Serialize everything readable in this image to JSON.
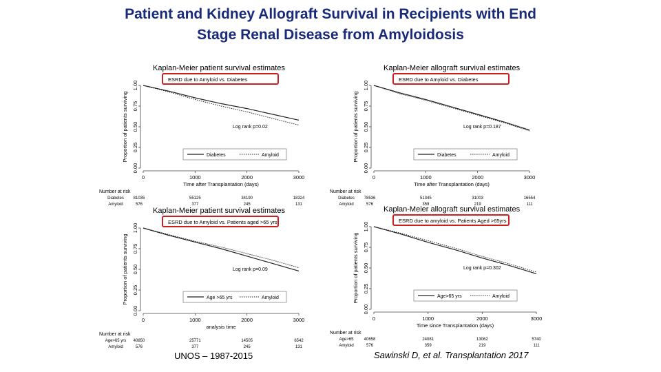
{
  "slide": {
    "title_line1": "Patient and Kidney Allograft Survival in Recipients with End",
    "title_line2": "Stage Renal Disease from Amyloidosis"
  },
  "footer": {
    "source": "UNOS – 1987-2015",
    "citation": "Sawinski D, et al. Transplantation 2017"
  },
  "colors": {
    "title": "#1a2a7a",
    "highlight_box": "#cc1f1f",
    "curve": "#222222"
  },
  "chart_data": [
    {
      "type": "line",
      "title": "Kaplan-Meier patient survival estimates",
      "subtitle": "ESRD due to Amyloid vs. Diabetes",
      "ylabel": "Proportion of patients surviving",
      "xlabel": "Time after Transplantation (days)",
      "xlim": [
        0,
        3000
      ],
      "ylim": [
        0,
        1
      ],
      "xticks": [
        "0",
        "1000",
        "2000",
        "3000"
      ],
      "yticks": [
        "0.00",
        "0.25",
        "0.50",
        "0.75",
        "1.00"
      ],
      "annotation": "Log rank p=0.02",
      "legend": [
        "Diabetes",
        "Amyloid"
      ],
      "series": [
        {
          "name": "Diabetes",
          "style": "solid",
          "x": [
            0,
            500,
            1000,
            1500,
            2000,
            2500,
            3000
          ],
          "y": [
            1.0,
            0.93,
            0.85,
            0.78,
            0.72,
            0.65,
            0.58
          ]
        },
        {
          "name": "Amyloid",
          "style": "dotted",
          "x": [
            0,
            500,
            1000,
            1500,
            2000,
            2500,
            3000
          ],
          "y": [
            1.0,
            0.92,
            0.83,
            0.75,
            0.68,
            0.6,
            0.52
          ]
        }
      ],
      "risk_table": {
        "header": "Number at risk",
        "rows": [
          {
            "label": "Diabetes",
            "values": [
              "81035",
              "55125",
              "34190",
              "18324"
            ]
          },
          {
            "label": "Amyloid",
            "values": [
              "576",
              "377",
              "245",
              "131"
            ]
          }
        ]
      }
    },
    {
      "type": "line",
      "title": "Kaplan-Meier allograft survival estimates",
      "subtitle": "ESRD due to Amyloid vs. Diabetes",
      "ylabel": "Proportion of patients surviving",
      "xlabel": "Time after Transplantation (days)",
      "xlim": [
        0,
        3000
      ],
      "ylim": [
        0,
        1
      ],
      "xticks": [
        "0",
        "1000",
        "2000",
        "3000"
      ],
      "yticks": [
        "0.00",
        "0.25",
        "0.50",
        "0.75",
        "1.00"
      ],
      "annotation": "Log rank p=0.187",
      "legend": [
        "Diabetes",
        "Amyloid"
      ],
      "series": [
        {
          "name": "Diabetes",
          "style": "solid",
          "x": [
            0,
            500,
            1000,
            1500,
            2000,
            2500,
            3000
          ],
          "y": [
            1.0,
            0.91,
            0.83,
            0.74,
            0.65,
            0.56,
            0.46
          ]
        },
        {
          "name": "Amyloid",
          "style": "dotted",
          "x": [
            0,
            500,
            1000,
            1500,
            2000,
            2500,
            3000
          ],
          "y": [
            1.0,
            0.9,
            0.82,
            0.73,
            0.64,
            0.55,
            0.45
          ]
        }
      ],
      "risk_table": {
        "header": "Number at risk",
        "rows": [
          {
            "label": "Diabetes",
            "values": [
              "78536",
              "51345",
              "31003",
              "16554"
            ]
          },
          {
            "label": "Amyloid",
            "values": [
              "576",
              "359",
              "219",
              "111"
            ]
          }
        ]
      }
    },
    {
      "type": "line",
      "title": "Kaplan-Meier patient survival estimates",
      "subtitle": "ESRD due to Amyloid vs. Patients aged >65 yrs",
      "ylabel": "Proportion of patients surviving",
      "xlabel": "analysis time",
      "xlim": [
        0,
        3000
      ],
      "ylim": [
        0,
        1
      ],
      "xticks": [
        "0",
        "1000",
        "2000",
        "3000"
      ],
      "yticks": [
        "0.00",
        "0.25",
        "0.50",
        "0.75",
        "1.00"
      ],
      "annotation": "Log rank p=0.09",
      "legend": [
        "Age >65 yrs",
        "Amyloid"
      ],
      "series": [
        {
          "name": "Age >65 yrs",
          "style": "solid",
          "x": [
            0,
            500,
            1000,
            1500,
            2000,
            2500,
            3000
          ],
          "y": [
            1.0,
            0.91,
            0.83,
            0.75,
            0.66,
            0.57,
            0.48
          ]
        },
        {
          "name": "Amyloid",
          "style": "dotted",
          "x": [
            0,
            500,
            1000,
            1500,
            2000,
            2500,
            3000
          ],
          "y": [
            1.0,
            0.92,
            0.84,
            0.77,
            0.69,
            0.61,
            0.52
          ]
        }
      ],
      "risk_table": {
        "header": "Number at risk",
        "rows": [
          {
            "label": "Age>65 yrs",
            "values": [
              "40850",
              "25771",
              "14505",
              "6542"
            ]
          },
          {
            "label": "Amyloid",
            "values": [
              "576",
              "377",
              "245",
              "131"
            ]
          }
        ]
      }
    },
    {
      "type": "line",
      "title": "Kaplan-Meier allograft survival estimates",
      "subtitle": "ESRD due to amyloid vs. Patients Aged >65yrs",
      "ylabel": "Proportion of patients surviving",
      "xlabel": "Time since Transplantation (days)",
      "xlim": [
        0,
        3000
      ],
      "ylim": [
        0,
        1
      ],
      "xticks": [
        "0",
        "1000",
        "2000",
        "3000"
      ],
      "yticks": [
        "0.00",
        "0.25",
        "0.50",
        "0.75",
        "1.00"
      ],
      "annotation": "Log rank p=0.302",
      "legend": [
        "Age>65 yrs",
        "Amyloid"
      ],
      "series": [
        {
          "name": "Age>65 yrs",
          "style": "solid",
          "x": [
            0,
            500,
            1000,
            1500,
            2000,
            2500,
            3000
          ],
          "y": [
            1.0,
            0.91,
            0.81,
            0.72,
            0.62,
            0.53,
            0.43
          ]
        },
        {
          "name": "Amyloid",
          "style": "dotted",
          "x": [
            0,
            500,
            1000,
            1500,
            2000,
            2500,
            3000
          ],
          "y": [
            1.0,
            0.92,
            0.83,
            0.74,
            0.64,
            0.55,
            0.45
          ]
        }
      ],
      "risk_table": {
        "header": "Number at risk",
        "rows": [
          {
            "label": "Age>65",
            "values": [
              "40658",
              "24081",
              "13062",
              "5740"
            ]
          },
          {
            "label": "Amyloid",
            "values": [
              "576",
              "359",
              "219",
              "111"
            ]
          }
        ]
      }
    }
  ]
}
